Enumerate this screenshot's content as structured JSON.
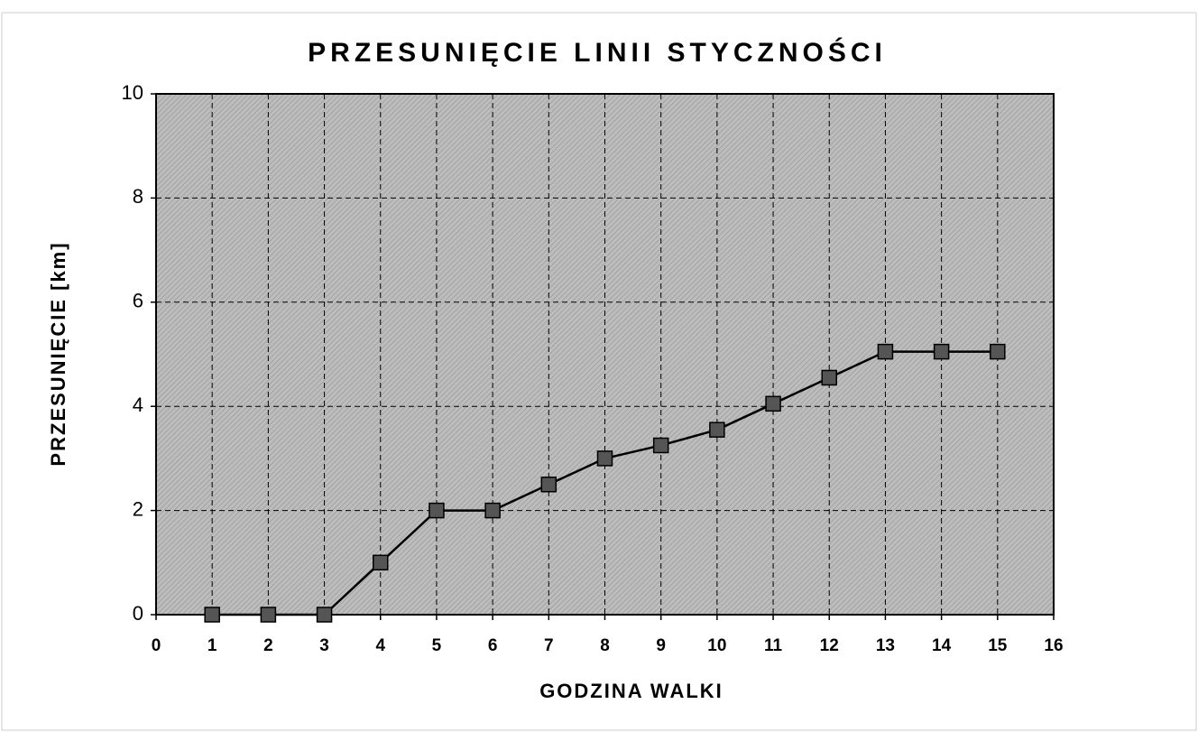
{
  "chart_data": {
    "type": "line",
    "title": "PRZESUNIĘCIE LINII STYCZNOŚCI",
    "xlabel": "GODZINA WALKI",
    "ylabel": "PRZESUNIĘCIE [km]",
    "x": [
      1,
      2,
      3,
      4,
      5,
      6,
      7,
      8,
      9,
      10,
      11,
      12,
      13,
      14,
      15
    ],
    "series": [
      {
        "name": "Przesunięcie",
        "color": "#555555",
        "values": [
          0,
          0,
          0,
          1,
          2,
          2,
          2.5,
          3,
          3.25,
          3.55,
          4.05,
          4.55,
          5.05,
          5.05,
          5.05
        ]
      }
    ],
    "xlim": [
      0,
      16
    ],
    "xticks": [
      0,
      1,
      2,
      3,
      4,
      5,
      6,
      7,
      8,
      9,
      10,
      11,
      12,
      13,
      14,
      15,
      16
    ],
    "ylim": [
      0,
      10
    ],
    "yticks": [
      0,
      2,
      4,
      6,
      8,
      10
    ],
    "grid": true
  }
}
